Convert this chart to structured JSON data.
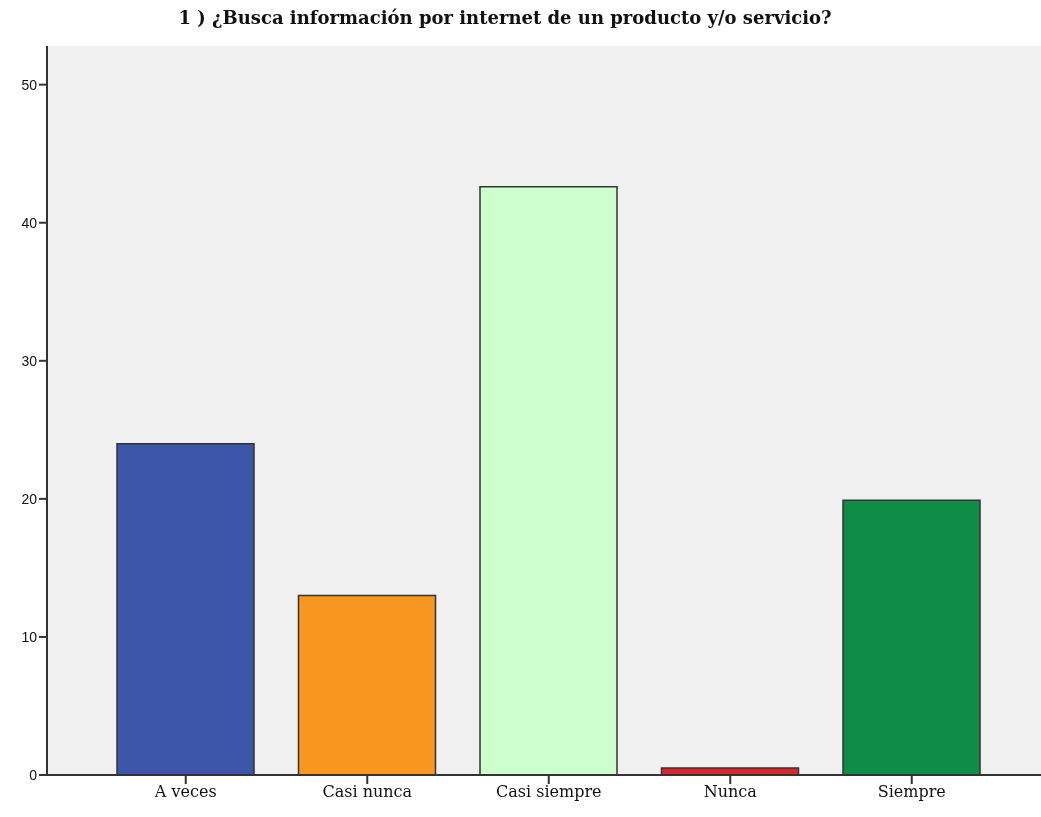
{
  "chart_data": {
    "type": "bar",
    "title": "1 ) ¿Busca información por internet de un producto y/o servicio?",
    "categories": [
      "A veces",
      "Casi nunca",
      "Casi siempre",
      "Nunca",
      "Siempre"
    ],
    "values": [
      24,
      13,
      42.6,
      0.5,
      19.9
    ],
    "colors": [
      "#3d56a8",
      "#f7971f",
      "#ccffcc",
      "#d9272e",
      "#0f8c47"
    ],
    "ylim": [
      0,
      52.8
    ],
    "yticks": [
      0,
      10,
      20,
      30,
      40,
      50
    ]
  }
}
